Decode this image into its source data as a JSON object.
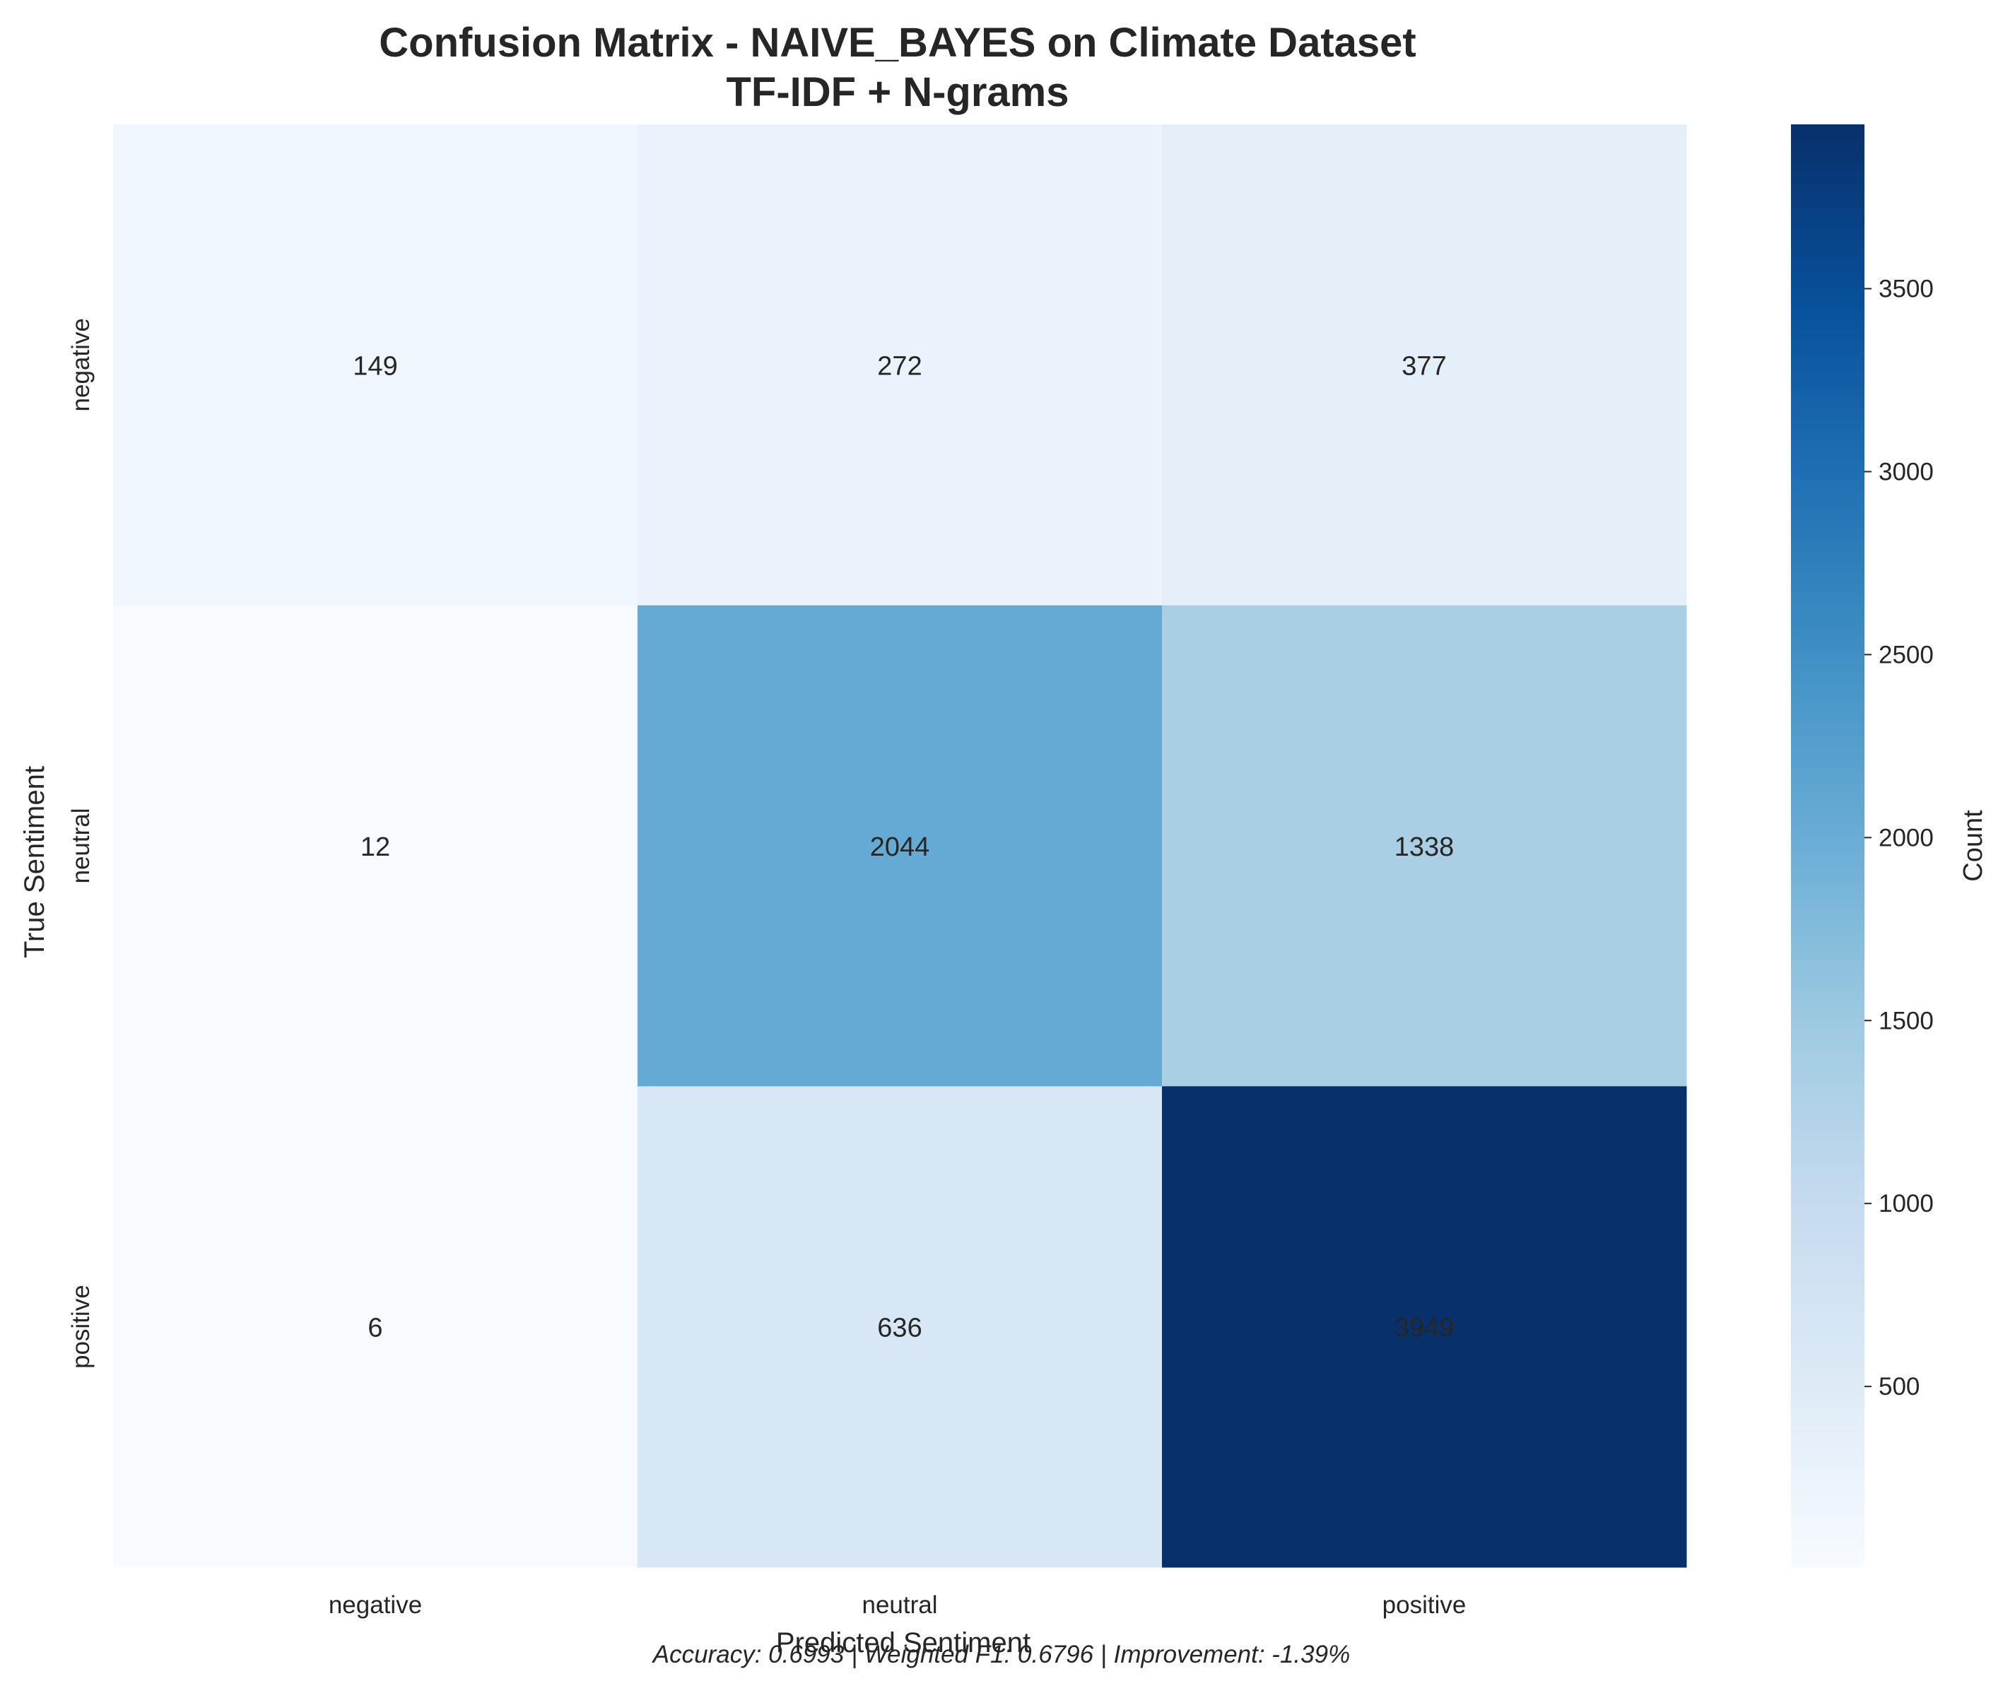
{
  "chart_data": {
    "type": "heatmap",
    "title_line1": "Confusion Matrix - NAIVE_BAYES on Climate Dataset",
    "title_line2": "TF-IDF + N-grams",
    "xlabel": "Predicted Sentiment",
    "ylabel": "True Sentiment",
    "x_categories": [
      "negative",
      "neutral",
      "positive"
    ],
    "y_categories": [
      "negative",
      "neutral",
      "positive"
    ],
    "values": [
      [
        149,
        272,
        377
      ],
      [
        12,
        2044,
        1338
      ],
      [
        6,
        636,
        3949
      ]
    ],
    "colormap": "Blues",
    "vmin": 6,
    "vmax": 3949,
    "colorbar_label": "Count",
    "colorbar_ticks": [
      500,
      1000,
      1500,
      2000,
      2500,
      3000,
      3500
    ],
    "footer": "Accuracy: 0.6993 | Weighted F1: 0.6796 | Improvement: -1.39%"
  },
  "colors": {
    "text": "#262626",
    "text_on_dark": "#ffffff",
    "blues": [
      "#f7fbff",
      "#deebf7",
      "#c6dbef",
      "#9ecae1",
      "#6baed6",
      "#4292c6",
      "#2171b5",
      "#08519c",
      "#08306b"
    ]
  }
}
